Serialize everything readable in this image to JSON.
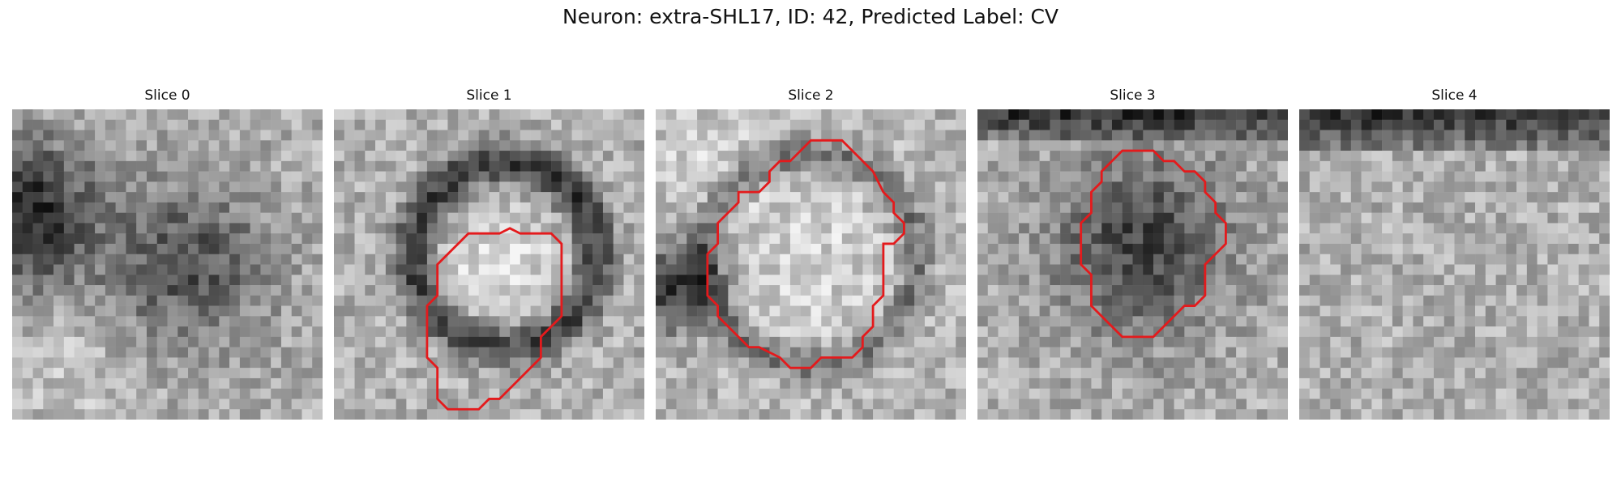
{
  "figure": {
    "title": "Neuron: extra-SHL17, ID: 42, Predicted Label: CV"
  },
  "colors": {
    "contour": "#e41a1c"
  },
  "panels": [
    {
      "title": "Slice 0",
      "image": {
        "blobs": [
          {
            "cx": 1,
            "cy": 10,
            "r": 5,
            "s": -140
          },
          {
            "cx": 17,
            "cy": 15,
            "r": 5.5,
            "s": -95
          },
          {
            "cx": 6,
            "cy": 25,
            "r": 4,
            "s": 25
          }
        ],
        "gradients": []
      },
      "contour": []
    },
    {
      "title": "Slice 1",
      "image": {
        "blobs": [
          {
            "cx": 16,
            "cy": 16,
            "r": 5,
            "s": 45
          }
        ],
        "rings": [
          {
            "cx": 16.5,
            "cy": 14,
            "r": 8.8,
            "w": 2.0,
            "s": -120
          }
        ],
        "gradients": []
      },
      "contour": [
        [
          17,
          11.5
        ],
        [
          18,
          12
        ],
        [
          21,
          12
        ],
        [
          22,
          13
        ],
        [
          22,
          20
        ],
        [
          20,
          22
        ],
        [
          20,
          24
        ],
        [
          16,
          28
        ],
        [
          15,
          28
        ],
        [
          14,
          29
        ],
        [
          11,
          29
        ],
        [
          10,
          28
        ],
        [
          10,
          25
        ],
        [
          9,
          24
        ],
        [
          9,
          22
        ],
        [
          9,
          19
        ],
        [
          10,
          18
        ],
        [
          10,
          15
        ],
        [
          13,
          12
        ],
        [
          16,
          12
        ]
      ]
    },
    {
      "title": "Slice 2",
      "image": {
        "blobs": [
          {
            "cx": 14.5,
            "cy": 14.5,
            "r": 8,
            "s": 35
          },
          {
            "cx": 2,
            "cy": 17,
            "r": 3,
            "s": -130
          },
          {
            "cx": 4,
            "cy": 4,
            "r": 4,
            "s": 30
          }
        ],
        "rings": [
          {
            "cx": 15,
            "cy": 14.5,
            "r": 10.2,
            "w": 1.6,
            "s": -75
          }
        ],
        "gradients": []
      },
      "contour": [
        [
          15,
          3
        ],
        [
          18,
          3
        ],
        [
          21,
          6
        ],
        [
          22,
          8
        ],
        [
          23,
          9
        ],
        [
          23,
          10
        ],
        [
          24,
          11
        ],
        [
          24,
          12
        ],
        [
          23,
          13
        ],
        [
          22,
          13
        ],
        [
          22,
          18
        ],
        [
          21,
          19
        ],
        [
          21,
          21
        ],
        [
          20,
          22
        ],
        [
          20,
          23
        ],
        [
          19,
          24
        ],
        [
          16,
          24
        ],
        [
          15,
          25
        ],
        [
          13,
          25
        ],
        [
          12,
          24
        ],
        [
          10,
          23
        ],
        [
          9,
          23
        ],
        [
          6,
          20
        ],
        [
          6,
          19
        ],
        [
          5,
          18
        ],
        [
          5,
          14
        ],
        [
          6,
          13
        ],
        [
          6,
          11
        ],
        [
          7,
          10
        ],
        [
          8,
          9
        ],
        [
          8,
          8
        ],
        [
          10,
          8
        ],
        [
          11,
          7
        ],
        [
          11,
          6
        ],
        [
          12,
          5
        ],
        [
          13,
          5
        ]
      ]
    },
    {
      "title": "Slice 3",
      "image": {
        "blobs": [
          {
            "cx": 16,
            "cy": 13,
            "r": 5.5,
            "s": -85
          },
          {
            "cx": 16,
            "cy": 13,
            "r": 8.5,
            "s": -25
          }
        ],
        "gradients": [
          {
            "rows": 3,
            "s": -120
          }
        ]
      },
      "contour": [
        [
          14,
          4
        ],
        [
          17,
          4
        ],
        [
          18,
          5
        ],
        [
          19,
          5
        ],
        [
          20,
          6
        ],
        [
          21,
          6
        ],
        [
          22,
          7
        ],
        [
          22,
          8
        ],
        [
          23,
          9
        ],
        [
          23,
          10
        ],
        [
          24,
          11
        ],
        [
          24,
          13
        ],
        [
          22,
          15
        ],
        [
          22,
          18
        ],
        [
          21,
          19
        ],
        [
          20,
          19
        ],
        [
          17,
          22
        ],
        [
          14,
          22
        ],
        [
          13,
          21
        ],
        [
          11,
          19
        ],
        [
          11,
          16
        ],
        [
          10,
          15
        ],
        [
          10,
          11
        ],
        [
          11,
          10
        ],
        [
          11,
          8
        ],
        [
          12,
          7
        ],
        [
          12,
          6
        ]
      ]
    },
    {
      "title": "Slice 4",
      "image": {
        "blobs": [],
        "gradients": [
          {
            "rows": 4,
            "s": -130
          }
        ]
      },
      "contour": []
    }
  ]
}
